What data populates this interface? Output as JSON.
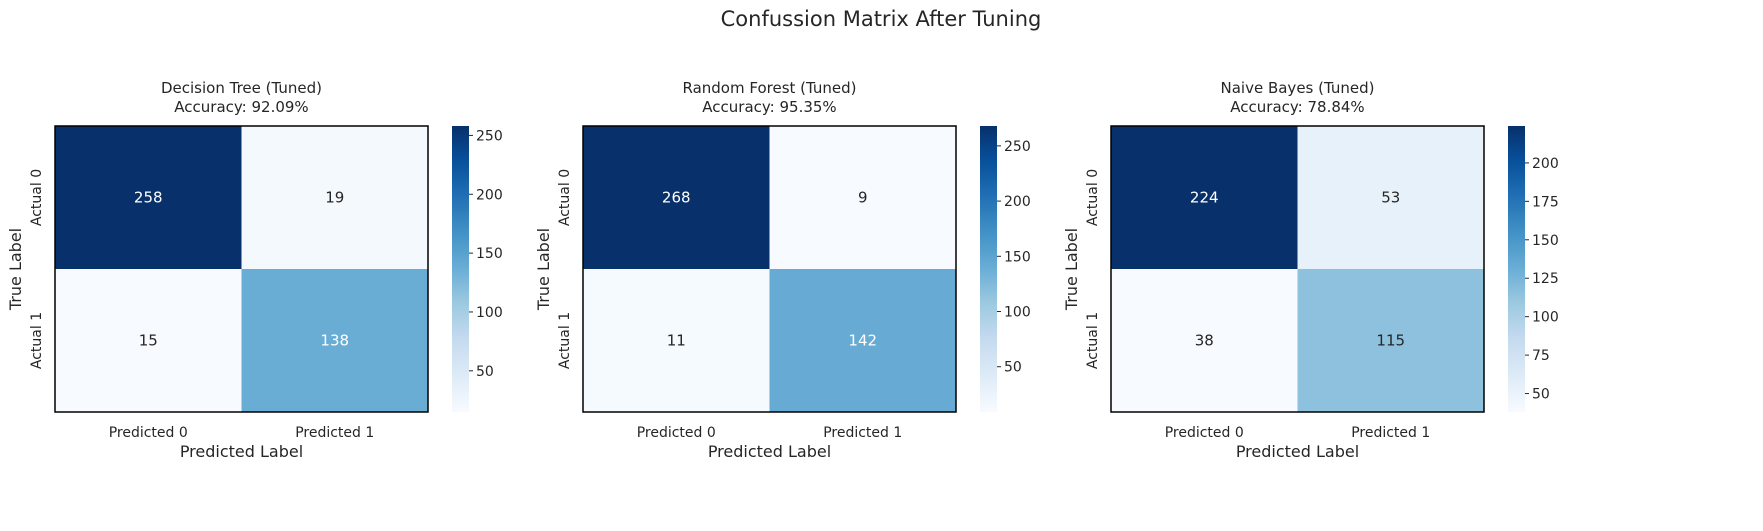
{
  "suptitle": "Confussion Matrix After Tuning",
  "chart_data": [
    {
      "type": "heatmap",
      "title_line1": "Decision Tree (Tuned)",
      "title_line2": "Accuracy: 92.09%",
      "xlabel": "Predicted Label",
      "ylabel": "True Label",
      "x_ticklabels": [
        "Predicted 0",
        "Predicted 1"
      ],
      "y_ticklabels": [
        "Actual 0",
        "Actual 1"
      ],
      "values": [
        [
          258,
          19
        ],
        [
          15,
          138
        ]
      ],
      "colormap": "Blues",
      "colorbar_range": [
        15,
        258
      ],
      "colorbar_ticks": [
        50,
        100,
        150,
        200,
        250
      ]
    },
    {
      "type": "heatmap",
      "title_line1": "Random Forest (Tuned)",
      "title_line2": "Accuracy: 95.35%",
      "xlabel": "Predicted Label",
      "ylabel": "True Label",
      "x_ticklabels": [
        "Predicted 0",
        "Predicted 1"
      ],
      "y_ticklabels": [
        "Actual 0",
        "Actual 1"
      ],
      "values": [
        [
          268,
          9
        ],
        [
          11,
          142
        ]
      ],
      "colormap": "Blues",
      "colorbar_range": [
        9,
        268
      ],
      "colorbar_ticks": [
        50,
        100,
        150,
        200,
        250
      ]
    },
    {
      "type": "heatmap",
      "title_line1": "Naive Bayes (Tuned)",
      "title_line2": "Accuracy: 78.84%",
      "xlabel": "Predicted Label",
      "ylabel": "True Label",
      "x_ticklabels": [
        "Predicted 0",
        "Predicted 1"
      ],
      "y_ticklabels": [
        "Actual 0",
        "Actual 1"
      ],
      "values": [
        [
          224,
          53
        ],
        [
          38,
          115
        ]
      ],
      "colormap": "Blues",
      "colorbar_range": [
        38,
        224
      ],
      "colorbar_ticks": [
        50,
        75,
        100,
        125,
        150,
        175,
        200
      ]
    }
  ]
}
